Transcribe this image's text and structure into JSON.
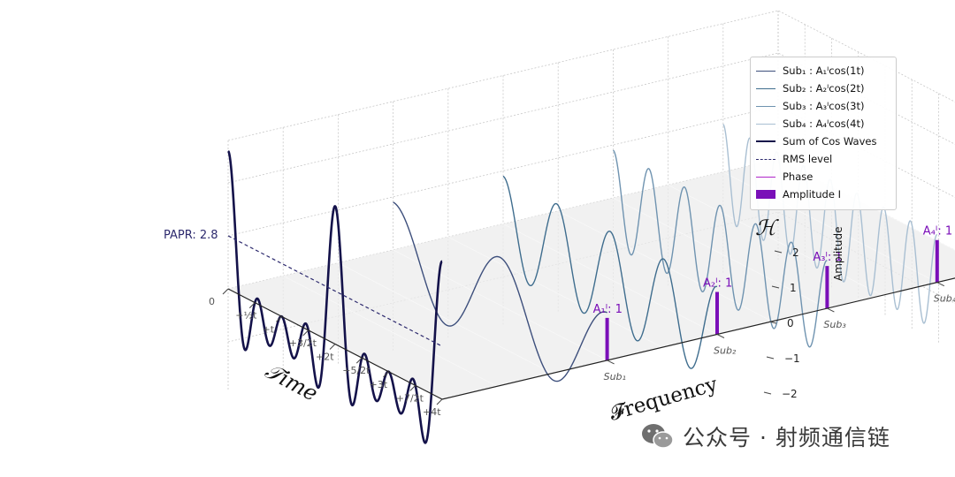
{
  "chart_data": {
    "type": "line",
    "title": "",
    "axes": {
      "time_label": "𝒯ime",
      "frequency_label": "𝓕requency",
      "amplitude_label": "Amplitude",
      "hilbert_label": "ℋ",
      "amplitude_ticks": [
        "−2",
        "−1",
        "0",
        "1",
        "2"
      ],
      "time_ticks": [
        "0",
        "+½t",
        "+t",
        "+3/2t",
        "+2t",
        "+5/2t",
        "+3t",
        "+7/2t",
        "+4t"
      ],
      "frequency_ticks": [
        "Sub₁",
        "Sub₂",
        "Sub₃",
        "Sub₄"
      ]
    },
    "series": [
      {
        "name": "Sub₁ : A₁ᴵcos(1t)",
        "frequency": 1,
        "amplitude": 1,
        "color": "#3d4f7c"
      },
      {
        "name": "Sub₂ : A₂ᴵcos(2t)",
        "frequency": 2,
        "amplitude": 1,
        "color": "#3f6d8e"
      },
      {
        "name": "Sub₃ : A₃ᴵcos(3t)",
        "frequency": 3,
        "amplitude": 1,
        "color": "#6f93b0"
      },
      {
        "name": "Sub₄ : A₄ᴵcos(4t)",
        "frequency": 4,
        "amplitude": 1,
        "color": "#a9bfd2"
      }
    ],
    "sum_series": {
      "name": "Sum of Cos Waves",
      "color": "#14124a",
      "peak": 4
    },
    "rms_level": {
      "name": "RMS level",
      "color": "#2d2a6e"
    },
    "papr": {
      "label": "PAPR: 2.8",
      "value": 2.8
    },
    "phase": {
      "name": "Phase",
      "color": "#b026c9"
    },
    "amplitude_bars": {
      "name": "Amplitude I",
      "color": "#7a0fb8",
      "labels": [
        "A₁ᴵ: 1",
        "A₂ᴵ: 1",
        "A₃ᴵ: 1",
        "A₄ᴵ: 1"
      ],
      "values": [
        1,
        1,
        1,
        1
      ]
    },
    "legend_position": "top-right"
  },
  "legend": {
    "items": [
      {
        "key": "sub1",
        "label": "Sub₁ : A₁ᴵcos(1t)",
        "color": "#3d4f7c",
        "style": "solid",
        "weight": 1.3
      },
      {
        "key": "sub2",
        "label": "Sub₂ : A₂ᴵcos(2t)",
        "color": "#3f6d8e",
        "style": "solid",
        "weight": 1.3
      },
      {
        "key": "sub3",
        "label": "Sub₃ : A₃ᴵcos(3t)",
        "color": "#6f93b0",
        "style": "solid",
        "weight": 1.3
      },
      {
        "key": "sub4",
        "label": "Sub₄ : A₄ᴵcos(4t)",
        "color": "#a9bfd2",
        "style": "solid",
        "weight": 1.3
      },
      {
        "key": "sum",
        "label": "Sum of Cos Waves",
        "color": "#14124a",
        "style": "solid",
        "weight": 2.4
      },
      {
        "key": "rms",
        "label": "RMS level",
        "color": "#2d2a6e",
        "style": "dashed",
        "weight": 1.2
      },
      {
        "key": "phase",
        "label": "Phase",
        "color": "#b026c9",
        "style": "solid",
        "weight": 1.6
      },
      {
        "key": "amp",
        "label": "Amplitude I",
        "color": "#7a0fb8",
        "style": "patch",
        "weight": 10
      }
    ]
  },
  "watermark": {
    "text": "公众号 · 射频通信链"
  }
}
